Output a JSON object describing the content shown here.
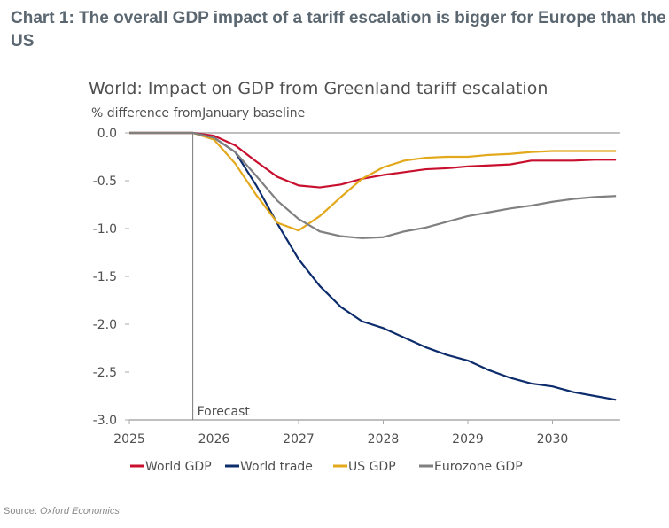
{
  "heading": "Chart 1: The overall GDP impact of a tariff escalation is bigger for Europe than the US",
  "source": {
    "label": "Source: ",
    "name": "Oxford Economics"
  },
  "chart_data": {
    "type": "line",
    "title": "World: Impact on GDP from Greenland tariff escalation",
    "subtitle": "% difference fromJanuary baseline",
    "xlim": [
      2025,
      2030.8
    ],
    "ylim": [
      -3.0,
      0.0
    ],
    "xticks": [
      "2025",
      "2026",
      "2027",
      "2028",
      "2029",
      "2030"
    ],
    "yticks": [
      "0.0",
      "-0.5",
      "-1.0",
      "-1.5",
      "-2.0",
      "-2.5",
      "-3.0"
    ],
    "grid": false,
    "legend": "bottom",
    "annotation": {
      "text": "Forecast",
      "x": 2025.75
    },
    "x": [
      2025,
      2025.25,
      2025.5,
      2025.75,
      2026,
      2026.25,
      2026.5,
      2026.75,
      2027,
      2027.25,
      2027.5,
      2027.75,
      2028,
      2028.25,
      2028.5,
      2028.75,
      2029,
      2029.25,
      2029.5,
      2029.75,
      2030,
      2030.25,
      2030.5,
      2030.75
    ],
    "series": [
      {
        "name": "World GDP",
        "color": "#c8102e",
        "values": [
          0,
          0,
          0,
          0,
          -0.03,
          -0.13,
          -0.3,
          -0.46,
          -0.55,
          -0.57,
          -0.54,
          -0.48,
          -0.44,
          -0.41,
          -0.38,
          -0.37,
          -0.35,
          -0.34,
          -0.33,
          -0.29,
          -0.29,
          -0.29,
          -0.28,
          -0.28
        ]
      },
      {
        "name": "World trade",
        "color": "#0d2c6c",
        "values": [
          0,
          0,
          0,
          0,
          -0.05,
          -0.2,
          -0.55,
          -0.95,
          -1.32,
          -1.6,
          -1.82,
          -1.97,
          -2.04,
          -2.14,
          -2.24,
          -2.32,
          -2.38,
          -2.48,
          -2.56,
          -2.62,
          -2.65,
          -2.71,
          -2.75,
          -2.79
        ]
      },
      {
        "name": "US GDP",
        "color": "#e3a81b",
        "values": [
          0,
          0,
          0,
          0,
          -0.07,
          -0.32,
          -0.65,
          -0.94,
          -1.02,
          -0.87,
          -0.67,
          -0.48,
          -0.36,
          -0.29,
          -0.26,
          -0.25,
          -0.25,
          -0.23,
          -0.22,
          -0.2,
          -0.19,
          -0.19,
          -0.19,
          -0.19
        ]
      },
      {
        "name": "Eurozone GDP",
        "color": "#808080",
        "values": [
          0,
          0,
          0,
          0,
          -0.05,
          -0.2,
          -0.45,
          -0.71,
          -0.9,
          -1.03,
          -1.08,
          -1.1,
          -1.09,
          -1.03,
          -0.99,
          -0.93,
          -0.87,
          -0.83,
          -0.79,
          -0.76,
          -0.72,
          -0.69,
          -0.67,
          -0.66
        ]
      }
    ]
  }
}
